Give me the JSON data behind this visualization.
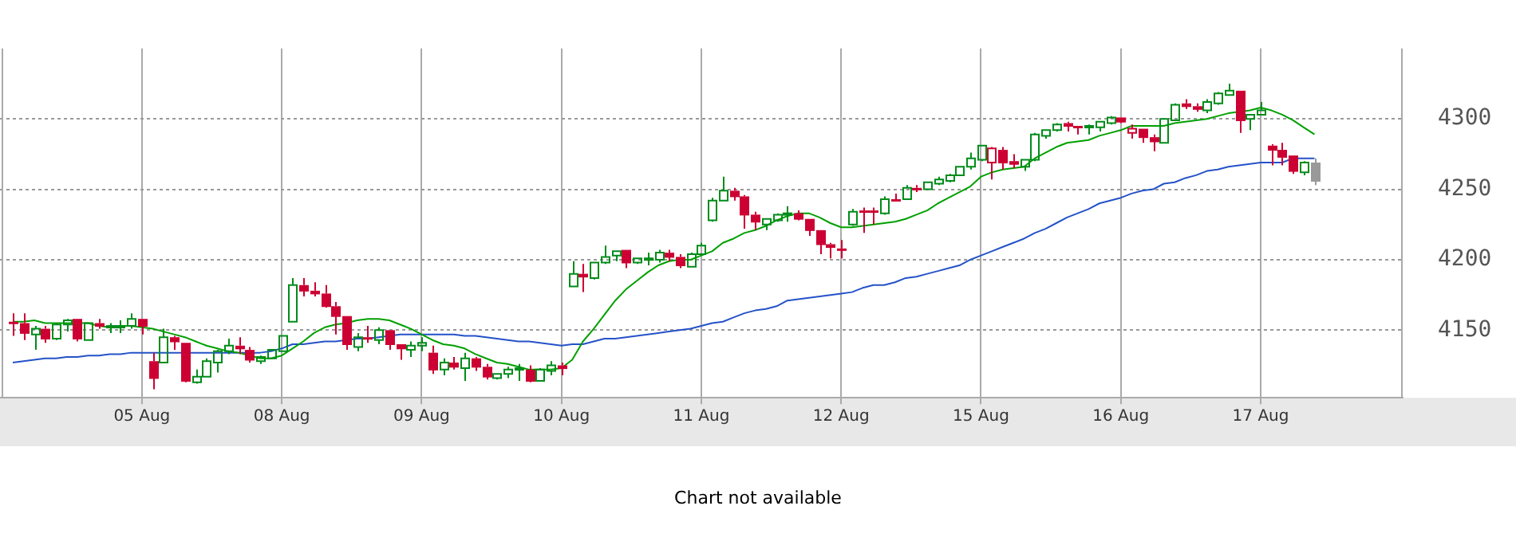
{
  "chart_data": {
    "type": "candlestick",
    "categories": [
      null,
      null,
      null,
      null,
      null,
      null,
      null,
      null,
      null,
      null,
      null,
      null,
      "05 Aug",
      null,
      null,
      null,
      null,
      null,
      null,
      null,
      null,
      null,
      null,
      null,
      null,
      "08 Aug",
      null,
      null,
      null,
      null,
      null,
      null,
      null,
      null,
      null,
      null,
      null,
      null,
      "09 Aug",
      null,
      null,
      null,
      null,
      null,
      null,
      null,
      null,
      null,
      null,
      null,
      null,
      "10 Aug",
      null,
      null,
      null,
      null,
      null,
      null,
      null,
      null,
      null,
      null,
      null,
      null,
      "11 Aug",
      null,
      null,
      null,
      null,
      null,
      null,
      null,
      null,
      null,
      null,
      null,
      null,
      "12 Aug",
      null,
      null,
      null,
      null,
      null,
      null,
      null,
      null,
      null,
      null,
      null,
      null,
      "15 Aug",
      null,
      null,
      null,
      null,
      null,
      null,
      null,
      null,
      null,
      null,
      null,
      null,
      "16 Aug",
      null,
      null,
      null,
      null,
      null,
      null,
      null,
      null,
      null,
      null,
      null,
      null,
      "17 Aug",
      null,
      null,
      null,
      null,
      null
    ],
    "ohlc": [
      [
        4156,
        4162,
        4146,
        4155
      ],
      [
        4155,
        4162,
        4143,
        4148
      ],
      [
        4147,
        4153,
        4136,
        4151
      ],
      [
        4151,
        4153,
        4141,
        4144
      ],
      [
        4144,
        4155,
        4143,
        4154
      ],
      [
        4154,
        4158,
        4149,
        4157
      ],
      [
        4158,
        4158,
        4142,
        4144
      ],
      [
        4143,
        4155,
        4143,
        4155
      ],
      [
        4155,
        4158,
        4151,
        4153
      ],
      [
        4152,
        4155,
        4148,
        4153
      ],
      [
        4152,
        4157,
        4148,
        4153
      ],
      [
        4153,
        4162,
        4151,
        4158
      ],
      [
        4158,
        4158,
        4147,
        4153
      ],
      [
        4128,
        4134,
        4108,
        4116
      ],
      [
        4127,
        4151,
        4127,
        4145
      ],
      [
        4145,
        4146,
        4136,
        4142
      ],
      [
        4141,
        4141,
        4113,
        4114
      ],
      [
        4113,
        4122,
        4112,
        4117
      ],
      [
        4117,
        4130,
        4117,
        4128
      ],
      [
        4127,
        4136,
        4120,
        4135
      ],
      [
        4135,
        4144,
        4133,
        4139
      ],
      [
        4139,
        4145,
        4133,
        4137
      ],
      [
        4136,
        4138,
        4127,
        4129
      ],
      [
        4128,
        4132,
        4126,
        4131
      ],
      [
        4130,
        4136,
        4130,
        4136
      ],
      [
        4135,
        4146,
        4135,
        4146
      ],
      [
        4156,
        4187,
        4156,
        4182
      ],
      [
        4182,
        4187,
        4174,
        4178
      ],
      [
        4178,
        4184,
        4174,
        4176
      ],
      [
        4176,
        4182,
        4166,
        4167
      ],
      [
        4167,
        4170,
        4147,
        4160
      ],
      [
        4160,
        4160,
        4136,
        4140
      ],
      [
        4138,
        4148,
        4135,
        4145
      ],
      [
        4145,
        4153,
        4141,
        4144
      ],
      [
        4143,
        4152,
        4140,
        4150
      ],
      [
        4150,
        4150,
        4136,
        4140
      ],
      [
        4140,
        4140,
        4129,
        4137
      ],
      [
        4136,
        4142,
        4131,
        4139
      ],
      [
        4139,
        4145,
        4135,
        4141
      ],
      [
        4134,
        4139,
        4119,
        4122
      ],
      [
        4122,
        4130,
        4118,
        4127
      ],
      [
        4127,
        4131,
        4122,
        4124
      ],
      [
        4123,
        4134,
        4114,
        4130
      ],
      [
        4130,
        4131,
        4121,
        4124
      ],
      [
        4124,
        4126,
        4115,
        4117
      ],
      [
        4116,
        4119,
        4115,
        4119
      ],
      [
        4119,
        4124,
        4116,
        4122
      ],
      [
        4122,
        4126,
        4114,
        4123
      ],
      [
        4122,
        4125,
        4113,
        4114
      ],
      [
        4114,
        4123,
        4114,
        4122
      ],
      [
        4121,
        4128,
        4118,
        4125
      ],
      [
        4125,
        4127,
        4118,
        4123
      ],
      [
        4181,
        4199,
        4181,
        4190
      ],
      [
        4190,
        4197,
        4177,
        4188
      ],
      [
        4187,
        4198,
        4186,
        4198
      ],
      [
        4198,
        4210,
        4197,
        4202
      ],
      [
        4203,
        4206,
        4199,
        4206
      ],
      [
        4207,
        4207,
        4194,
        4198
      ],
      [
        4198,
        4201,
        4197,
        4201
      ],
      [
        4200,
        4205,
        4196,
        4201
      ],
      [
        4200,
        4207,
        4198,
        4205
      ],
      [
        4205,
        4207,
        4199,
        4202
      ],
      [
        4202,
        4204,
        4194,
        4196
      ],
      [
        4195,
        4205,
        4195,
        4204
      ],
      [
        4204,
        4212,
        4203,
        4210
      ],
      [
        4228,
        4244,
        4227,
        4242
      ],
      [
        4242,
        4259,
        4242,
        4249
      ],
      [
        4249,
        4251,
        4242,
        4245
      ],
      [
        4245,
        4246,
        4222,
        4232
      ],
      [
        4232,
        4234,
        4221,
        4227
      ],
      [
        4225,
        4229,
        4221,
        4229
      ],
      [
        4228,
        4233,
        4227,
        4232
      ],
      [
        4232,
        4238,
        4227,
        4233
      ],
      [
        4233,
        4235,
        4228,
        4229
      ],
      [
        4229,
        4229,
        4217,
        4221
      ],
      [
        4221,
        4221,
        4204,
        4211
      ],
      [
        4211,
        4212,
        4201,
        4209
      ],
      [
        4208,
        4214,
        4201,
        4207
      ],
      [
        4225,
        4236,
        4224,
        4234
      ],
      [
        4235,
        4237,
        4219,
        4234
      ],
      [
        4235,
        4237,
        4225,
        4234
      ],
      [
        4233,
        4245,
        4232,
        4243
      ],
      [
        4243,
        4247,
        4242,
        4242
      ],
      [
        4243,
        4253,
        4243,
        4251
      ],
      [
        4251,
        4253,
        4248,
        4250
      ],
      [
        4250,
        4255,
        4250,
        4255
      ],
      [
        4254,
        4259,
        4253,
        4257
      ],
      [
        4256,
        4261,
        4255,
        4260
      ],
      [
        4260,
        4266,
        4260,
        4266
      ],
      [
        4266,
        4276,
        4264,
        4272
      ],
      [
        4271,
        4281,
        4270,
        4281
      ],
      [
        4269,
        4280,
        4257,
        4279
      ],
      [
        4278,
        4280,
        4264,
        4269
      ],
      [
        4270,
        4275,
        4265,
        4268
      ],
      [
        4266,
        4271,
        4263,
        4271
      ],
      [
        4271,
        4290,
        4270,
        4289
      ],
      [
        4288,
        4292,
        4286,
        4292
      ],
      [
        4292,
        4297,
        4291,
        4296
      ],
      [
        4297,
        4298,
        4291,
        4295
      ],
      [
        4295,
        4295,
        4289,
        4294
      ],
      [
        4294,
        4296,
        4289,
        4295
      ],
      [
        4294,
        4298,
        4291,
        4298
      ],
      [
        4297,
        4302,
        4296,
        4301
      ],
      [
        4301,
        4301,
        4297,
        4298
      ],
      [
        4290,
        4296,
        4286,
        4293
      ],
      [
        4293,
        4293,
        4283,
        4287
      ],
      [
        4287,
        4289,
        4277,
        4284
      ],
      [
        4283,
        4300,
        4283,
        4300
      ],
      [
        4299,
        4311,
        4299,
        4310
      ],
      [
        4311,
        4314,
        4307,
        4309
      ],
      [
        4309,
        4311,
        4305,
        4307
      ],
      [
        4306,
        4314,
        4304,
        4312
      ],
      [
        4311,
        4319,
        4310,
        4318
      ],
      [
        4317,
        4325,
        4317,
        4320
      ],
      [
        4320,
        4320,
        4290,
        4299
      ],
      [
        4300,
        4303,
        4292,
        4303
      ],
      [
        4303,
        4312,
        4303,
        4306
      ],
      [
        4281,
        4282,
        4267,
        4278
      ],
      [
        4278,
        4283,
        4267,
        4273
      ],
      [
        4274,
        4274,
        4261,
        4263
      ],
      [
        4262,
        4270,
        4260,
        4269
      ],
      [
        4269,
        4272,
        4253,
        4256
      ]
    ],
    "colors": [
      "#cc0033",
      "#cc0033",
      "#008c1a",
      "#cc0033",
      "#008c1a",
      "#008c1a",
      "#cc0033",
      "#008c1a",
      "#cc0033",
      "#008c1a",
      "#008c1a",
      "#008c1a",
      "#cc0033",
      "#cc0033",
      "#008c1a",
      "#cc0033",
      "#cc0033",
      "#008c1a",
      "#008c1a",
      "#008c1a",
      "#008c1a",
      "#cc0033",
      "#cc0033",
      "#008c1a",
      "#008c1a",
      "#008c1a",
      "#008c1a",
      "#cc0033",
      "#cc0033",
      "#cc0033",
      "#cc0033",
      "#cc0033",
      "#008c1a",
      "#cc0033",
      "#008c1a",
      "#cc0033",
      "#cc0033",
      "#008c1a",
      "#008c1a",
      "#cc0033",
      "#008c1a",
      "#cc0033",
      "#008c1a",
      "#cc0033",
      "#cc0033",
      "#008c1a",
      "#008c1a",
      "#008c1a",
      "#cc0033",
      "#008c1a",
      "#008c1a",
      "#cc0033",
      "#008c1a",
      "#cc0033",
      "#008c1a",
      "#008c1a",
      "#008c1a",
      "#cc0033",
      "#008c1a",
      "#008c1a",
      "#008c1a",
      "#cc0033",
      "#cc0033",
      "#008c1a",
      "#008c1a",
      "#008c1a",
      "#008c1a",
      "#cc0033",
      "#cc0033",
      "#cc0033",
      "#008c1a",
      "#008c1a",
      "#008c1a",
      "#cc0033",
      "#cc0033",
      "#cc0033",
      "#cc0033",
      "#cc0033",
      "#008c1a",
      "#cc0033",
      "#cc0033",
      "#008c1a",
      "#cc0033",
      "#008c1a",
      "#cc0033",
      "#008c1a",
      "#008c1a",
      "#008c1a",
      "#008c1a",
      "#008c1a",
      "#008c1a",
      "#cc0033",
      "#cc0033",
      "#cc0033",
      "#008c1a",
      "#008c1a",
      "#008c1a",
      "#008c1a",
      "#cc0033",
      "#cc0033",
      "#008c1a",
      "#008c1a",
      "#008c1a",
      "#cc0033",
      "#cc0033",
      "#cc0033",
      "#cc0033",
      "#008c1a",
      "#008c1a",
      "#cc0033",
      "#cc0033",
      "#008c1a",
      "#008c1a",
      "#008c1a",
      "#cc0033",
      "#008c1a",
      "#008c1a",
      "#cc0033",
      "#cc0033",
      "#cc0033",
      "#008c1a",
      "#999999"
    ],
    "series": [
      {
        "type": "line",
        "color": "#00a000",
        "values": [
          4156,
          4156,
          4157,
          4155,
          4155,
          4155,
          4155,
          4155,
          4153,
          4152,
          4153,
          4153,
          4152,
          4151,
          4149,
          4147,
          4145,
          4142,
          4139,
          4137,
          4135,
          4134,
          4132,
          4130,
          4130,
          4132,
          4137,
          4142,
          4148,
          4152,
          4154,
          4155,
          4157,
          4158,
          4158,
          4157,
          4154,
          4151,
          4147,
          4143,
          4140,
          4139,
          4137,
          4133,
          4130,
          4127,
          4126,
          4124,
          4122,
          4122,
          4122,
          4123,
          4129,
          4142,
          4151,
          4161,
          4171,
          4179,
          4185,
          4191,
          4196,
          4199,
          4200,
          4200,
          4203,
          4206,
          4212,
          4215,
          4219,
          4221,
          4224,
          4228,
          4231,
          4233,
          4233,
          4230,
          4226,
          4223,
          4223,
          4224,
          4225,
          4226,
          4227,
          4229,
          4232,
          4235,
          4240,
          4244,
          4248,
          4252,
          4259,
          4262,
          4264,
          4265,
          4266,
          4272,
          4276,
          4280,
          4283,
          4284,
          4285,
          4288,
          4290,
          4292,
          4295,
          4295,
          4295,
          4295,
          4297,
          4298,
          4299,
          4300,
          4302,
          4304,
          4305,
          4306,
          4308,
          4306,
          4303,
          4299,
          4294,
          4289
        ]
      },
      {
        "type": "line",
        "color": "#2452c8",
        "values": [
          4127,
          4128,
          4129,
          4130,
          4130,
          4131,
          4131,
          4132,
          4132,
          4133,
          4133,
          4134,
          4134,
          4134,
          4134,
          4134,
          4134,
          4134,
          4134,
          4134,
          4134,
          4134,
          4134,
          4134,
          4135,
          4137,
          4140,
          4140,
          4141,
          4142,
          4142,
          4143,
          4144,
          4144,
          4145,
          4146,
          4147,
          4147,
          4147,
          4147,
          4147,
          4147,
          4146,
          4146,
          4145,
          4144,
          4143,
          4142,
          4142,
          4141,
          4140,
          4139,
          4140,
          4140,
          4142,
          4144,
          4144,
          4145,
          4146,
          4147,
          4148,
          4149,
          4150,
          4151,
          4153,
          4155,
          4156,
          4159,
          4162,
          4164,
          4165,
          4167,
          4171,
          4172,
          4173,
          4174,
          4175,
          4176,
          4177,
          4180,
          4182,
          4182,
          4184,
          4187,
          4188,
          4190,
          4192,
          4194,
          4196,
          4200,
          4203,
          4206,
          4209,
          4212,
          4215,
          4219,
          4222,
          4226,
          4230,
          4233,
          4236,
          4240,
          4242,
          4244,
          4247,
          4249,
          4250,
          4254,
          4255,
          4258,
          4260,
          4263,
          4264,
          4266,
          4267,
          4268,
          4269,
          4269,
          4269,
          4272,
          4272,
          4272
        ]
      }
    ],
    "ylim": [
      4102,
      4350
    ],
    "yticks": [
      4150,
      4200,
      4250,
      4300
    ],
    "grid": true,
    "annotations": [
      "Chart not available"
    ]
  }
}
